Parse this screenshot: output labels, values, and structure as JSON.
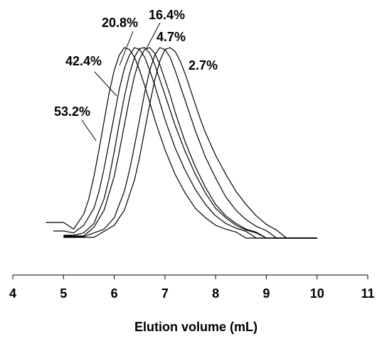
{
  "chart_data": {
    "type": "line",
    "title": "",
    "xlabel": "Elution volume (mL)",
    "ylabel": "",
    "xlim": [
      4,
      11
    ],
    "x_ticks": [
      "4",
      "5",
      "6",
      "7",
      "8",
      "9",
      "10",
      "11"
    ],
    "grid": false,
    "legend": "none",
    "series": [
      {
        "name": "53.2%",
        "baseline_start_x": 4.65,
        "x": [
          4.65,
          4.8,
          5.0,
          5.2,
          5.4,
          5.5,
          5.6,
          5.7,
          5.8,
          5.9,
          6.0,
          6.1,
          6.2,
          6.3,
          6.4,
          6.5,
          6.6,
          6.7,
          6.8,
          6.9,
          7.0,
          7.2,
          7.4,
          7.6,
          7.8,
          8.0,
          8.2,
          8.4,
          8.6,
          8.8,
          9.0,
          9.2,
          9.4,
          9.6,
          9.8,
          10.0
        ],
        "y": [
          0.0,
          0.0,
          0.01,
          0.04,
          0.12,
          0.2,
          0.32,
          0.46,
          0.61,
          0.76,
          0.88,
          0.96,
          1.0,
          0.99,
          0.95,
          0.88,
          0.8,
          0.71,
          0.62,
          0.54,
          0.46,
          0.33,
          0.23,
          0.15,
          0.1,
          0.06,
          0.04,
          0.025,
          0.015,
          0.01,
          0.006,
          0.004,
          0.002,
          0.001,
          0.0,
          0.0
        ]
      },
      {
        "name": "42.4%",
        "baseline_start_x": 4.8,
        "x": [
          4.8,
          5.0,
          5.2,
          5.4,
          5.6,
          5.7,
          5.8,
          5.9,
          6.0,
          6.1,
          6.2,
          6.3,
          6.4,
          6.5,
          6.6,
          6.7,
          6.8,
          6.9,
          7.0,
          7.2,
          7.4,
          7.6,
          7.8,
          8.0,
          8.2,
          8.4,
          8.6,
          8.8,
          9.0,
          9.2,
          9.4,
          9.6,
          9.8,
          10.0
        ],
        "y": [
          0.0,
          0.005,
          0.02,
          0.06,
          0.15,
          0.24,
          0.36,
          0.5,
          0.64,
          0.78,
          0.89,
          0.96,
          1.0,
          0.99,
          0.95,
          0.88,
          0.8,
          0.71,
          0.62,
          0.47,
          0.35,
          0.25,
          0.17,
          0.11,
          0.07,
          0.045,
          0.028,
          0.017,
          0.01,
          0.006,
          0.003,
          0.001,
          0.0,
          0.0
        ]
      },
      {
        "name": "20.8%",
        "baseline_start_x": 5.0,
        "x": [
          5.0,
          5.2,
          5.4,
          5.6,
          5.8,
          5.9,
          6.0,
          6.1,
          6.2,
          6.3,
          6.4,
          6.5,
          6.6,
          6.7,
          6.8,
          6.9,
          7.0,
          7.1,
          7.2,
          7.4,
          7.6,
          7.8,
          8.0,
          8.2,
          8.4,
          8.6,
          8.8,
          9.0,
          9.2,
          9.4,
          9.6,
          9.8,
          10.0
        ],
        "y": [
          0.0,
          0.005,
          0.02,
          0.07,
          0.2,
          0.31,
          0.45,
          0.6,
          0.74,
          0.86,
          0.95,
          0.995,
          1.0,
          0.97,
          0.91,
          0.83,
          0.75,
          0.67,
          0.59,
          0.45,
          0.33,
          0.23,
          0.15,
          0.1,
          0.06,
          0.035,
          0.02,
          0.012,
          0.006,
          0.003,
          0.001,
          0.0,
          0.0
        ]
      },
      {
        "name": "16.4%",
        "baseline_start_x": 5.0,
        "x": [
          5.0,
          5.2,
          5.4,
          5.6,
          5.8,
          6.0,
          6.1,
          6.2,
          6.3,
          6.4,
          6.5,
          6.6,
          6.7,
          6.8,
          6.9,
          7.0,
          7.1,
          7.2,
          7.3,
          7.4,
          7.6,
          7.8,
          8.0,
          8.2,
          8.4,
          8.6,
          8.8,
          9.0,
          9.2,
          9.4,
          9.6,
          9.8,
          10.0
        ],
        "y": [
          0.0,
          0.004,
          0.015,
          0.05,
          0.14,
          0.32,
          0.45,
          0.59,
          0.73,
          0.85,
          0.94,
          0.99,
          1.0,
          0.97,
          0.91,
          0.83,
          0.75,
          0.66,
          0.58,
          0.5,
          0.37,
          0.26,
          0.17,
          0.11,
          0.07,
          0.04,
          0.024,
          0.014,
          0.008,
          0.004,
          0.002,
          0.0,
          0.0
        ]
      },
      {
        "name": "4.7%",
        "baseline_start_x": 5.0,
        "x": [
          5.0,
          5.4,
          5.8,
          6.0,
          6.2,
          6.3,
          6.4,
          6.5,
          6.6,
          6.7,
          6.8,
          6.9,
          7.0,
          7.1,
          7.2,
          7.3,
          7.4,
          7.5,
          7.6,
          7.8,
          8.0,
          8.2,
          8.4,
          8.6,
          8.8,
          9.0,
          9.2,
          9.4,
          9.6,
          9.8,
          10.0
        ],
        "y": [
          0.0,
          0.005,
          0.04,
          0.1,
          0.24,
          0.35,
          0.48,
          0.62,
          0.76,
          0.88,
          0.96,
          1.0,
          0.99,
          0.95,
          0.88,
          0.8,
          0.72,
          0.64,
          0.56,
          0.42,
          0.31,
          0.21,
          0.14,
          0.09,
          0.055,
          0.032,
          0.017,
          0.008,
          0.003,
          0.001,
          0.0
        ]
      },
      {
        "name": "2.7%",
        "baseline_start_x": 5.0,
        "x": [
          5.0,
          5.6,
          6.0,
          6.2,
          6.4,
          6.5,
          6.6,
          6.7,
          6.8,
          6.9,
          7.0,
          7.1,
          7.2,
          7.3,
          7.4,
          7.5,
          7.6,
          7.7,
          7.8,
          8.0,
          8.2,
          8.4,
          8.6,
          8.8,
          9.0,
          9.2,
          9.4,
          9.6,
          9.8,
          10.0
        ],
        "y": [
          0.0,
          0.01,
          0.06,
          0.14,
          0.3,
          0.42,
          0.56,
          0.7,
          0.83,
          0.93,
          0.99,
          1.0,
          0.98,
          0.93,
          0.86,
          0.78,
          0.7,
          0.62,
          0.55,
          0.43,
          0.33,
          0.24,
          0.17,
          0.11,
          0.065,
          0.035,
          0.016,
          0.006,
          0.002,
          0.0
        ]
      }
    ],
    "annotations": [
      {
        "text": "53.2%",
        "series": "53.2%"
      },
      {
        "text": "42.4%",
        "series": "42.4%"
      },
      {
        "text": "20.8%",
        "series": "20.8%"
      },
      {
        "text": "16.4%",
        "series": "16.4%"
      },
      {
        "text": "4.7%",
        "series": "4.7%"
      },
      {
        "text": "2.7%",
        "series": "2.7%"
      }
    ],
    "line_color": "#000000"
  }
}
